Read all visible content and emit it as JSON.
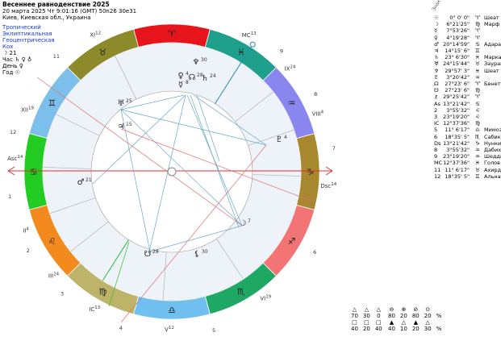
{
  "header": {
    "title": "Весеннее равноденствие 2025",
    "datetime": "20 марта 2025  Чт   9:01:16 (GMT) 50n26  30e31",
    "place": "Киев, Киевская обл., Украина"
  },
  "settings": [
    "Тропический",
    "Эклиптикальная",
    "Геоцентрическая",
    "Кох"
  ],
  "rulers": [
    "☽ 21",
    "Час ♄ ♀ ♁",
    "День ♀",
    "Год ☉"
  ],
  "signs": [
    {
      "glyph": "♈",
      "color": "#e8141c"
    },
    {
      "glyph": "♉",
      "color": "#8c8a2a"
    },
    {
      "glyph": "♊",
      "color": "#7cbfea"
    },
    {
      "glyph": "♋",
      "color": "#22cc22"
    },
    {
      "glyph": "♌",
      "color": "#f28a1e"
    },
    {
      "glyph": "♍",
      "color": "#bdb46a"
    },
    {
      "glyph": "♎",
      "color": "#6fc0f0"
    },
    {
      "glyph": "♏",
      "color": "#1fa864"
    },
    {
      "glyph": "♐",
      "color": "#f27474"
    },
    {
      "glyph": "♑",
      "color": "#a8882e"
    },
    {
      "glyph": "♒",
      "color": "#8a86f0"
    },
    {
      "glyph": "♓",
      "color": "#1ea08c"
    }
  ],
  "houses": [
    {
      "cusp": "Asc",
      "deg": "14",
      "num": "1"
    },
    {
      "cusp": "II",
      "deg": "4",
      "num": "2"
    },
    {
      "cusp": "III",
      "deg": "24",
      "num": "3"
    },
    {
      "cusp": "IC",
      "deg": "13",
      "num": "4"
    },
    {
      "cusp": "V",
      "deg": "12",
      "num": "5"
    },
    {
      "cusp": "VI",
      "deg": "19",
      "num": "6"
    },
    {
      "cusp": "Dsc",
      "deg": "14",
      "num": "7"
    },
    {
      "cusp": "VIII",
      "deg": "4",
      "num": "8"
    },
    {
      "cusp": "IX",
      "deg": "24",
      "num": "9"
    },
    {
      "cusp": "MC",
      "deg": "13"
    },
    {
      "cusp": "XI",
      "deg": "12",
      "num": "11"
    },
    {
      "cusp": "XII",
      "deg": "19",
      "num": "12"
    }
  ],
  "planets": [
    {
      "glyph": "♆",
      "deg": "30"
    },
    {
      "glyph": "♀",
      "deg": "4"
    },
    {
      "glyph": "☿",
      "deg": "8"
    },
    {
      "glyph": "☊",
      "deg": "28"
    },
    {
      "glyph": "♄",
      "deg": "24"
    },
    {
      "glyph": "♅",
      "deg": "25"
    },
    {
      "glyph": "♃",
      "deg": "15"
    },
    {
      "glyph": "♂",
      "deg": "21"
    },
    {
      "glyph": "♇",
      "deg": "4"
    },
    {
      "glyph": "☽",
      "deg": "7"
    },
    {
      "glyph": "☋",
      "deg": "28"
    },
    {
      "glyph": "⚸",
      "deg": "30"
    }
  ],
  "table": {
    "header": "Знак",
    "rows": [
      [
        "☉",
        "0° 0' 0\"",
        "♈",
        "Шеат"
      ],
      [
        "☽",
        "6°21'25\"",
        "♍",
        "Марф"
      ],
      [
        "☿",
        "7°53'26\"",
        "♈"
      ],
      [
        "♀",
        "4°19'28\"",
        "♈"
      ],
      [
        "♂",
        "20°14'59\"",
        "♋",
        "Адара"
      ],
      [
        "♃",
        "14°15' 6\"",
        "♊"
      ],
      [
        "♄",
        "23° 6'30\"",
        "♓",
        "Марка"
      ],
      [
        "♅",
        "24°15'44\"",
        "♉",
        "Заурак"
      ],
      [
        "♆",
        "29°57' 3\"",
        "♓",
        "Шеат"
      ],
      [
        "♇",
        "3°20'42\"",
        "♒"
      ],
      [
        "☊",
        "27°23' 6\"",
        "♈",
        "Бенетн"
      ],
      [
        "☋",
        "27°23' 6\"",
        "♍"
      ],
      [
        "⚷",
        "29°25'42\"",
        "♈"
      ],
      [
        "As",
        "13°21'42\"",
        "♋"
      ],
      [
        "2",
        "3°55'32\"",
        "♌"
      ],
      [
        "3",
        "23°19'20\"",
        "♌"
      ],
      [
        "IC",
        "12°37'36\"",
        "♍"
      ],
      [
        "5",
        "11° 6'17\"",
        "♎",
        "Мимоз"
      ],
      [
        "6",
        "18°35' 5\"",
        "♏",
        "Сабик"
      ],
      [
        "Ds",
        "13°21'42\"",
        "♑",
        "Нунки"
      ],
      [
        "8",
        "3°55'32\"",
        "♒",
        "Дабих"
      ],
      [
        "9",
        "23°19'20\"",
        "♒",
        "Шедди"
      ],
      [
        "MC",
        "12°37'36\"",
        "♓",
        "Голов"
      ],
      [
        "11",
        "11° 6'17\"",
        "♉",
        "Ахирд"
      ],
      [
        "12",
        "18°35' 5\"",
        "♊",
        "Альна"
      ]
    ]
  },
  "stats": {
    "left": [
      [
        "△",
        "△",
        "△"
      ],
      [
        "70",
        "30",
        "0"
      ],
      [
        "□",
        "□",
        "□"
      ],
      [
        "40",
        "20",
        "40"
      ]
    ],
    "right": [
      [
        "⊖",
        "⊕",
        "⊘",
        "⊙"
      ],
      [
        "80",
        "20",
        "80",
        "20",
        "%"
      ],
      [
        "▲",
        "△",
        "▲",
        "△"
      ],
      [
        "40",
        "10",
        "20",
        "30",
        "%"
      ]
    ]
  }
}
